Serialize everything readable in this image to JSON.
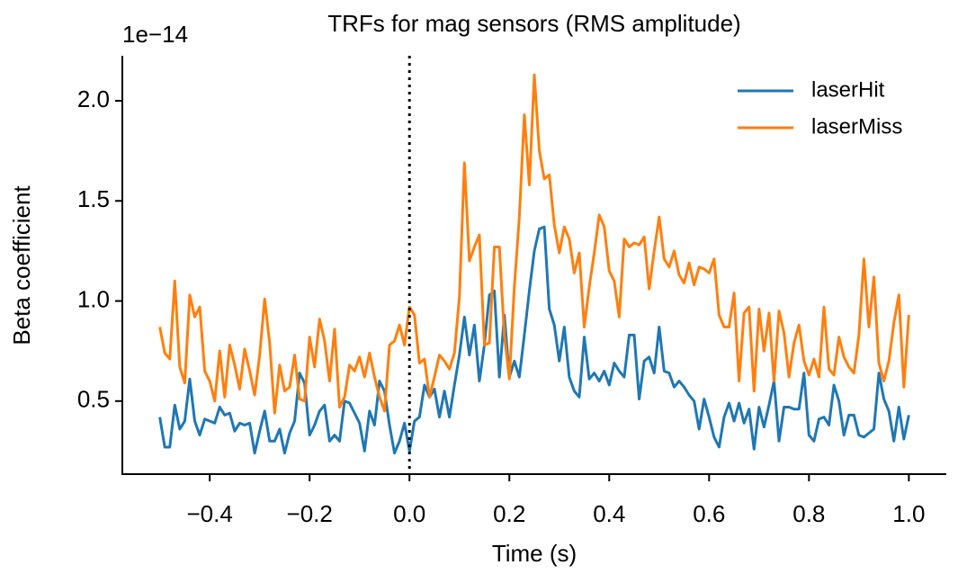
{
  "chart_data": {
    "type": "line",
    "title": "TRFs for mag sensors (RMS amplitude)",
    "x_label": "Time (s)",
    "y_label": "Beta coefficient",
    "y_offset_text": "1e−14",
    "x": [
      -0.5,
      -0.49,
      -0.48,
      -0.47,
      -0.46,
      -0.45,
      -0.44,
      -0.43,
      -0.42,
      -0.41,
      -0.4,
      -0.39,
      -0.38,
      -0.37,
      -0.36,
      -0.35,
      -0.34,
      -0.33,
      -0.32,
      -0.31,
      -0.3,
      -0.29,
      -0.28,
      -0.27,
      -0.26,
      -0.25,
      -0.24,
      -0.23,
      -0.22,
      -0.21,
      -0.2,
      -0.19,
      -0.18,
      -0.17,
      -0.16,
      -0.15,
      -0.14,
      -0.13,
      -0.12,
      -0.11,
      -0.1,
      -0.09,
      -0.08,
      -0.07,
      -0.06,
      -0.05,
      -0.04,
      -0.03,
      -0.02,
      -0.01,
      0,
      0.01,
      0.02,
      0.03,
      0.04,
      0.05,
      0.06,
      0.07,
      0.08,
      0.09,
      0.1,
      0.11,
      0.12,
      0.13,
      0.14,
      0.15,
      0.16,
      0.17,
      0.18,
      0.19,
      0.2,
      0.21,
      0.22,
      0.23,
      0.24,
      0.25,
      0.26,
      0.27,
      0.28,
      0.29,
      0.3,
      0.31,
      0.32,
      0.33,
      0.34,
      0.35,
      0.36,
      0.37,
      0.38,
      0.39,
      0.4,
      0.41,
      0.42,
      0.43,
      0.44,
      0.45,
      0.46,
      0.47,
      0.48,
      0.49,
      0.5,
      0.51,
      0.52,
      0.53,
      0.54,
      0.55,
      0.56,
      0.57,
      0.58,
      0.59,
      0.6,
      0.61,
      0.62,
      0.63,
      0.64,
      0.65,
      0.66,
      0.67,
      0.68,
      0.69,
      0.7,
      0.71,
      0.72,
      0.73,
      0.74,
      0.75,
      0.76,
      0.77,
      0.78,
      0.79,
      0.8,
      0.81,
      0.82,
      0.83,
      0.84,
      0.85,
      0.86,
      0.87,
      0.88,
      0.89,
      0.9,
      0.91,
      0.92,
      0.93,
      0.94,
      0.95,
      0.96,
      0.97,
      0.98,
      0.99,
      1.0
    ],
    "series": [
      {
        "name": "laserHit",
        "color": "#1f77b4",
        "values": [
          0.42,
          0.27,
          0.27,
          0.48,
          0.36,
          0.4,
          0.61,
          0.4,
          0.33,
          0.41,
          0.4,
          0.39,
          0.47,
          0.43,
          0.44,
          0.35,
          0.39,
          0.38,
          0.39,
          0.24,
          0.35,
          0.45,
          0.3,
          0.3,
          0.36,
          0.24,
          0.34,
          0.4,
          0.64,
          0.59,
          0.33,
          0.38,
          0.45,
          0.48,
          0.3,
          0.33,
          0.3,
          0.5,
          0.49,
          0.44,
          0.39,
          0.25,
          0.45,
          0.38,
          0.6,
          0.55,
          0.38,
          0.24,
          0.3,
          0.39,
          0.25,
          0.4,
          0.42,
          0.58,
          0.52,
          0.56,
          0.42,
          0.55,
          0.42,
          0.58,
          0.73,
          0.92,
          0.73,
          0.88,
          0.6,
          0.78,
          1.03,
          1.05,
          0.62,
          0.93,
          0.62,
          0.7,
          0.62,
          0.83,
          1.05,
          1.25,
          1.36,
          1.37,
          0.96,
          0.88,
          0.7,
          0.87,
          0.62,
          0.55,
          0.52,
          0.82,
          0.61,
          0.64,
          0.6,
          0.65,
          0.58,
          0.69,
          0.65,
          0.62,
          0.83,
          0.83,
          0.51,
          0.7,
          0.72,
          0.64,
          0.87,
          0.65,
          0.64,
          0.57,
          0.6,
          0.57,
          0.53,
          0.5,
          0.36,
          0.51,
          0.42,
          0.32,
          0.27,
          0.42,
          0.49,
          0.4,
          0.49,
          0.39,
          0.46,
          0.26,
          0.47,
          0.37,
          0.48,
          0.6,
          0.3,
          0.47,
          0.47,
          0.46,
          0.46,
          0.64,
          0.33,
          0.3,
          0.41,
          0.42,
          0.38,
          0.58,
          0.5,
          0.33,
          0.43,
          0.43,
          0.33,
          0.32,
          0.34,
          0.36,
          0.64,
          0.51,
          0.45,
          0.3,
          0.47,
          0.31,
          0.43
        ]
      },
      {
        "name": "laserMiss",
        "color": "#ff7f0e",
        "values": [
          0.87,
          0.74,
          0.71,
          1.1,
          0.67,
          0.59,
          1.03,
          0.92,
          0.97,
          0.65,
          0.6,
          0.5,
          0.75,
          0.52,
          0.78,
          0.68,
          0.56,
          0.76,
          0.65,
          0.53,
          0.73,
          1.01,
          0.79,
          0.44,
          0.68,
          0.55,
          0.57,
          0.73,
          0.51,
          0.5,
          0.82,
          0.67,
          0.91,
          0.8,
          0.6,
          0.86,
          0.47,
          0.52,
          0.68,
          0.65,
          0.72,
          0.62,
          0.74,
          0.62,
          0.52,
          0.45,
          0.78,
          0.8,
          0.88,
          0.78,
          0.97,
          0.93,
          0.69,
          0.71,
          0.52,
          0.62,
          0.73,
          0.7,
          0.66,
          0.74,
          1.02,
          1.69,
          1.2,
          1.27,
          1.33,
          0.78,
          0.79,
          1.27,
          1.27,
          0.83,
          0.61,
          1.07,
          1.42,
          1.93,
          1.58,
          2.13,
          1.75,
          1.61,
          1.63,
          1.38,
          1.24,
          1.37,
          1.31,
          1.14,
          1.24,
          0.87,
          1.07,
          1.24,
          1.43,
          1.37,
          1.15,
          1.1,
          0.92,
          1.31,
          1.27,
          1.29,
          1.28,
          1.32,
          1.06,
          1.25,
          1.42,
          1.21,
          1.17,
          1.25,
          1.13,
          1.09,
          1.19,
          1.08,
          1.17,
          1.16,
          1.14,
          1.21,
          0.93,
          0.87,
          0.87,
          1.04,
          0.6,
          0.94,
          0.97,
          0.55,
          0.96,
          0.75,
          0.94,
          0.6,
          0.95,
          0.84,
          0.62,
          0.79,
          0.88,
          0.7,
          0.63,
          0.71,
          0.62,
          0.97,
          0.66,
          0.63,
          0.82,
          0.72,
          0.67,
          0.64,
          0.83,
          1.21,
          0.87,
          1.12,
          0.69,
          0.6,
          0.7,
          0.89,
          1.03,
          0.57,
          0.93
        ]
      }
    ],
    "xlim": [
      -0.575,
      1.075
    ],
    "ylim": [
      0.135,
      2.225
    ],
    "xticks": [
      {
        "value": -0.4,
        "label": "−0.4"
      },
      {
        "value": -0.2,
        "label": "−0.2"
      },
      {
        "value": 0,
        "label": "0.0"
      },
      0.2,
      0.4,
      0.6,
      0.8,
      {
        "value": 1,
        "label": "1.0"
      }
    ],
    "yticks": [
      0.5,
      {
        "value": 1,
        "label": "1.0"
      },
      1.5,
      {
        "value": 2,
        "label": "2.0"
      }
    ],
    "vline_x": 0,
    "grid": false,
    "legend": "upper right"
  }
}
